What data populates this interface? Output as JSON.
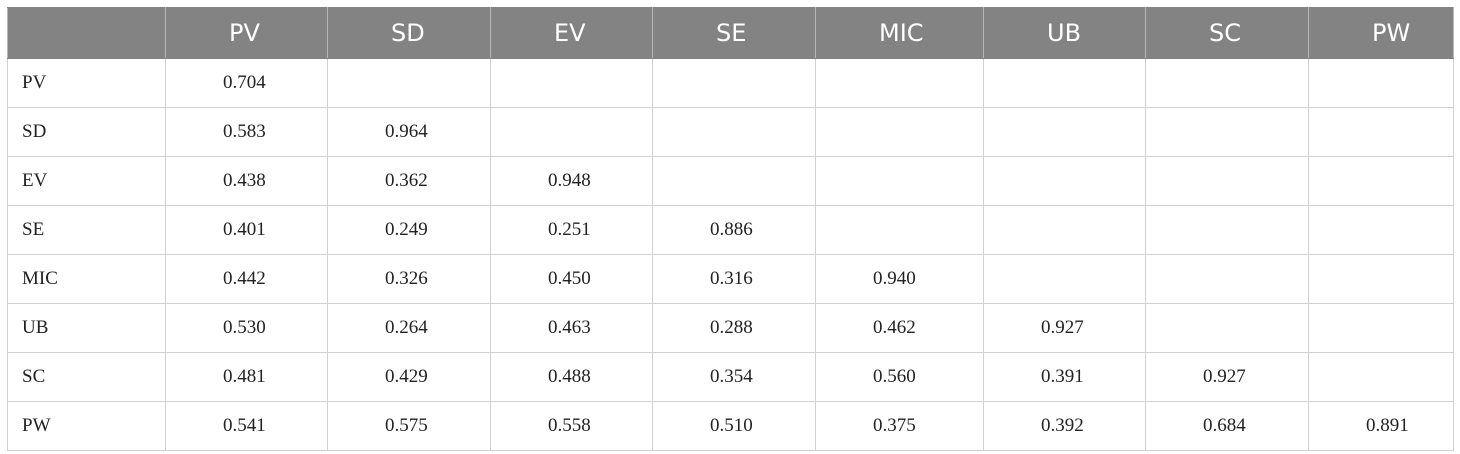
{
  "table": {
    "corner": "",
    "columns": [
      "PV",
      "SD",
      "EV",
      "SE",
      "MIC",
      "UB",
      "SC",
      "PW"
    ],
    "rows": [
      {
        "label": "PV",
        "cells": [
          "0.704",
          "",
          "",
          "",
          "",
          "",
          "",
          ""
        ]
      },
      {
        "label": "SD",
        "cells": [
          "0.583",
          "0.964",
          "",
          "",
          "",
          "",
          "",
          ""
        ]
      },
      {
        "label": "EV",
        "cells": [
          "0.438",
          "0.362",
          "0.948",
          "",
          "",
          "",
          "",
          ""
        ]
      },
      {
        "label": "SE",
        "cells": [
          "0.401",
          "0.249",
          "0.251",
          "0.886",
          "",
          "",
          "",
          ""
        ]
      },
      {
        "label": "MIC",
        "cells": [
          "0.442",
          "0.326",
          "0.450",
          "0.316",
          "0.940",
          "",
          "",
          ""
        ]
      },
      {
        "label": "UB",
        "cells": [
          "0.530",
          "0.264",
          "0.463",
          "0.288",
          "0.462",
          "0.927",
          "",
          ""
        ]
      },
      {
        "label": "SC",
        "cells": [
          "0.481",
          "0.429",
          "0.488",
          "0.354",
          "0.560",
          "0.391",
          "0.927",
          ""
        ]
      },
      {
        "label": "PW",
        "cells": [
          "0.541",
          "0.575",
          "0.558",
          "0.510",
          "0.375",
          "0.392",
          "0.684",
          "0.891"
        ]
      }
    ]
  },
  "colors": {
    "header_bg": "#838383",
    "header_text": "#ffffff",
    "grid_line": "#d0d0d0"
  }
}
